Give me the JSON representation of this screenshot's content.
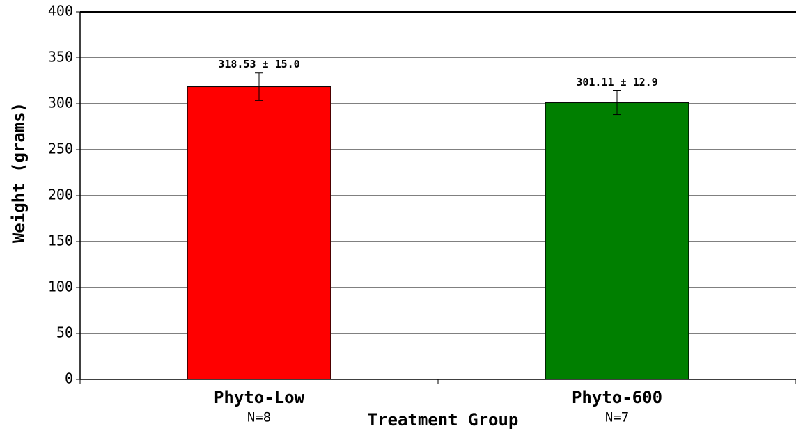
{
  "chart_data": {
    "type": "bar",
    "x_label": "Treatment Group",
    "y_label": "Weight (grams)",
    "categories": [
      "Phyto-Low",
      "Phyto-600"
    ],
    "n_labels": [
      "N=8",
      "N=7"
    ],
    "values": [
      318.53,
      301.11
    ],
    "errors": [
      15.0,
      12.9
    ],
    "value_labels": [
      "318.53 ± 15.0",
      "301.11 ± 12.9"
    ],
    "colors": [
      "#ff0000",
      "#007f00"
    ],
    "ylim": [
      0,
      400
    ],
    "yticks": [
      0,
      50,
      100,
      150,
      200,
      250,
      300,
      350,
      400
    ],
    "grid": true
  }
}
